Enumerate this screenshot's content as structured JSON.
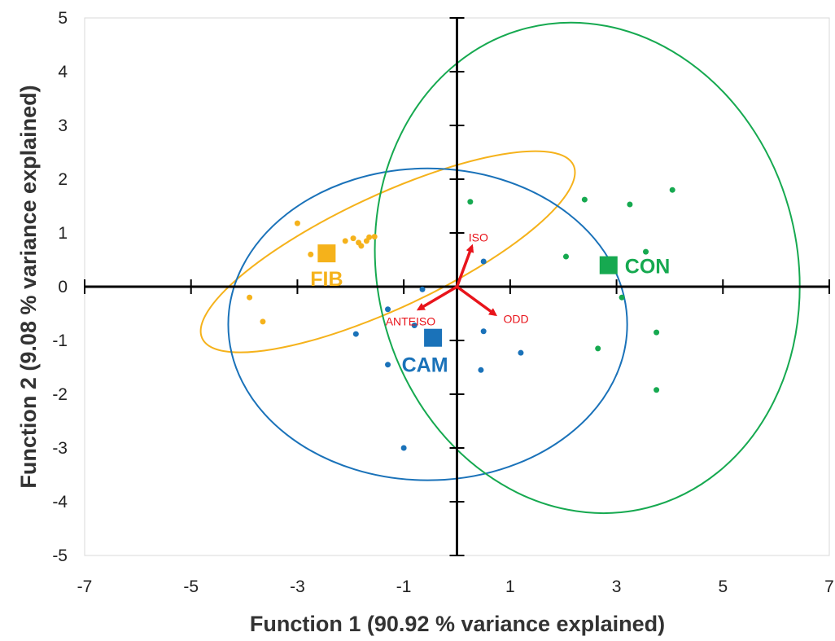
{
  "chart_data": {
    "type": "scatter",
    "xlabel": "Function 1 (90.92 % variance explained)",
    "ylabel": "Function 2 (9.08 % variance explained)",
    "xlim": [
      -7,
      7
    ],
    "ylim": [
      -5,
      5
    ],
    "x_ticks": [
      -7,
      -5,
      -3,
      -1,
      1,
      3,
      5,
      7
    ],
    "y_ticks": [
      -5,
      -4,
      -3,
      -2,
      -1,
      0,
      1,
      2,
      3,
      4,
      5
    ],
    "grid": false,
    "series": [
      {
        "name": "FIB",
        "color": "#f5b21b",
        "centroid": [
          -2.45,
          0.62
        ],
        "points": [
          [
            -3.0,
            1.18
          ],
          [
            -2.75,
            0.6
          ],
          [
            -2.55,
            0.72
          ],
          [
            -2.1,
            0.85
          ],
          [
            -1.95,
            0.9
          ],
          [
            -1.85,
            0.82
          ],
          [
            -1.8,
            0.76
          ],
          [
            -1.7,
            0.85
          ],
          [
            -1.65,
            0.92
          ],
          [
            -1.55,
            0.93
          ],
          [
            -3.9,
            -0.2
          ],
          [
            -3.65,
            -0.65
          ]
        ],
        "ellipse": {
          "cx": -1.3,
          "cy": 0.65,
          "rx": 3.85,
          "ry": 1.05,
          "angle_deg": 25
        }
      },
      {
        "name": "CAM",
        "color": "#1a72b9",
        "centroid": [
          -0.45,
          -0.95
        ],
        "points": [
          [
            -1.3,
            -0.42
          ],
          [
            -1.9,
            -0.88
          ],
          [
            -0.65,
            -0.05
          ],
          [
            -0.8,
            -0.72
          ],
          [
            0.5,
            0.47
          ],
          [
            0.5,
            -0.83
          ],
          [
            0.45,
            -1.55
          ],
          [
            1.2,
            -1.23
          ],
          [
            -1.3,
            -1.45
          ],
          [
            -1.0,
            -3.0
          ]
        ],
        "ellipse": {
          "cx": -0.55,
          "cy": -0.7,
          "rx": 3.75,
          "ry": 2.9,
          "angle_deg": 0
        }
      },
      {
        "name": "CON",
        "color": "#16a950",
        "centroid": [
          2.85,
          0.4
        ],
        "points": [
          [
            0.25,
            1.58
          ],
          [
            2.4,
            1.62
          ],
          [
            3.25,
            1.53
          ],
          [
            4.05,
            1.8
          ],
          [
            2.05,
            0.56
          ],
          [
            3.55,
            0.65
          ],
          [
            3.1,
            -0.2
          ],
          [
            3.75,
            -0.85
          ],
          [
            2.65,
            -1.15
          ],
          [
            3.75,
            -1.92
          ]
        ],
        "ellipse": {
          "cx": 2.45,
          "cy": 0.35,
          "rx": 3.95,
          "ry": 4.6,
          "angle_deg": 14
        }
      }
    ],
    "vectors": [
      {
        "label": "ISO",
        "x": 0.28,
        "y": 0.75
      },
      {
        "label": "ANTEISO",
        "x": -0.72,
        "y": -0.42
      },
      {
        "label": "ODD",
        "x": 0.72,
        "y": -0.52
      }
    ]
  }
}
